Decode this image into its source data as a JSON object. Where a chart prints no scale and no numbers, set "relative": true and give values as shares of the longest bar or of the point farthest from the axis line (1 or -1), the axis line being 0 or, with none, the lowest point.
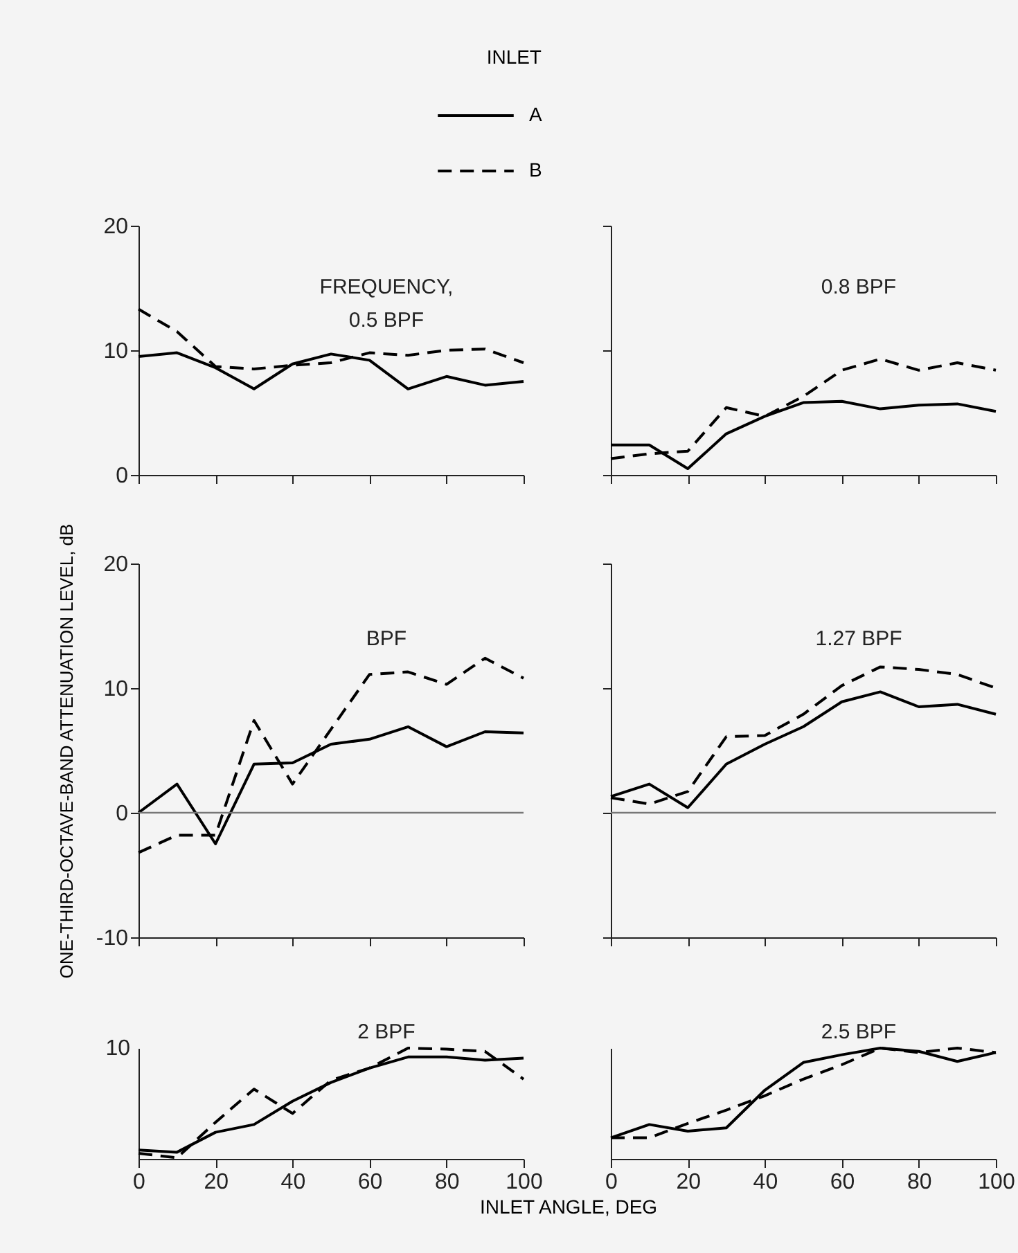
{
  "chart_data": [
    {
      "type": "line",
      "title": "0.5 BPF",
      "annotations": [
        "FREQUENCY,"
      ],
      "legend_title": "INLET",
      "legend": "top",
      "tick_labels": "y",
      "x": [
        0,
        10,
        20,
        30,
        40,
        50,
        60,
        70,
        80,
        90,
        100
      ],
      "xlim": [
        0,
        100
      ],
      "xticks": [
        0,
        20,
        40,
        60,
        80,
        100
      ],
      "ylim": [
        0,
        20
      ],
      "yticks": [
        0,
        10,
        20
      ],
      "series": [
        {
          "name": "A",
          "color": "#000000",
          "line_style": "solid",
          "values": [
            9.5,
            9.8,
            8.6,
            6.9,
            8.9,
            9.7,
            9.2,
            6.9,
            7.9,
            7.2,
            7.5
          ]
        },
        {
          "name": "B",
          "color": "#000000",
          "line_style": "dashed",
          "values": [
            13.3,
            11.5,
            8.7,
            8.5,
            8.8,
            9.0,
            9.8,
            9.6,
            10.0,
            10.1,
            9.0
          ]
        }
      ]
    },
    {
      "type": "line",
      "title": "0.8 BPF",
      "tick_labels": false,
      "x": [
        0,
        10,
        20,
        30,
        40,
        50,
        60,
        70,
        80,
        90,
        100
      ],
      "xlim": [
        0,
        100
      ],
      "xticks": [
        0,
        20,
        40,
        60,
        80,
        100
      ],
      "ylim": [
        0,
        20
      ],
      "yticks": [
        0,
        10,
        20
      ],
      "series": [
        {
          "color": "#000000",
          "line_style": "solid",
          "values": [
            2.4,
            2.4,
            0.5,
            3.3,
            4.7,
            5.8,
            5.9,
            5.3,
            5.6,
            5.7,
            5.1
          ]
        },
        {
          "color": "#000000",
          "line_style": "dashed",
          "values": [
            1.3,
            1.7,
            1.9,
            5.4,
            4.7,
            6.3,
            8.4,
            9.3,
            8.4,
            9.0,
            8.4
          ]
        }
      ]
    },
    {
      "type": "line",
      "title": "BPF",
      "ylabel": "ONE-THIRD-OCTAVE-BAND ATTENUATION LEVEL, dB",
      "tick_labels": "y",
      "x": [
        0,
        10,
        20,
        30,
        40,
        50,
        60,
        70,
        80,
        90,
        100
      ],
      "xlim": [
        0,
        100
      ],
      "xticks": [
        0,
        20,
        40,
        60,
        80,
        100
      ],
      "ylim": [
        -10,
        20
      ],
      "yticks": [
        -10,
        0,
        10,
        20
      ],
      "ref_lines": [
        {
          "axis": "y",
          "value": 0
        }
      ],
      "series": [
        {
          "color": "#000000",
          "line_style": "solid",
          "values": [
            0,
            2.3,
            -2.5,
            3.9,
            4.0,
            5.5,
            5.9,
            6.9,
            5.3,
            6.5,
            6.4
          ]
        },
        {
          "color": "#000000",
          "line_style": "dashed",
          "values": [
            -3.2,
            -1.8,
            -1.8,
            7.4,
            2.3,
            6.7,
            11.1,
            11.3,
            10.3,
            12.4,
            10.8
          ]
        }
      ]
    },
    {
      "type": "line",
      "title": "1.27 BPF",
      "tick_labels": false,
      "x": [
        0,
        10,
        20,
        30,
        40,
        50,
        60,
        70,
        80,
        90,
        100
      ],
      "xlim": [
        0,
        100
      ],
      "xticks": [
        0,
        20,
        40,
        60,
        80,
        100
      ],
      "ylim": [
        -10,
        20
      ],
      "yticks": [
        -10,
        0,
        10,
        20
      ],
      "ref_lines": [
        {
          "axis": "y",
          "value": 0
        }
      ],
      "series": [
        {
          "color": "#000000",
          "line_style": "solid",
          "values": [
            1.3,
            2.3,
            0.4,
            3.9,
            5.5,
            6.9,
            8.9,
            9.7,
            8.5,
            8.7,
            7.9
          ]
        },
        {
          "color": "#000000",
          "line_style": "dashed",
          "values": [
            1.2,
            0.7,
            1.7,
            6.1,
            6.2,
            7.9,
            10.2,
            11.7,
            11.5,
            11.1,
            10.0
          ]
        }
      ]
    },
    {
      "type": "line",
      "title": "2 BPF",
      "xlabel": "INLET ANGLE, DEG",
      "annotations": [
        "10"
      ],
      "relative": true,
      "x": [
        0,
        10,
        20,
        30,
        40,
        50,
        60,
        70,
        80,
        90,
        100
      ],
      "xlim": [
        0,
        100
      ],
      "xticks": [
        0,
        20,
        40,
        60,
        80,
        100
      ],
      "series": [
        {
          "color": "#000000",
          "line_style": "solid",
          "values": [
            0.08,
            0.06,
            0.24,
            0.31,
            0.52,
            0.69,
            0.82,
            0.92,
            0.92,
            0.89,
            0.91
          ]
        },
        {
          "color": "#000000",
          "line_style": "dashed",
          "values": [
            0.05,
            0.01,
            0.33,
            0.63,
            0.41,
            0.71,
            0.82,
            1,
            0.99,
            0.97,
            0.72
          ]
        }
      ]
    },
    {
      "type": "line",
      "title": "2.5 BPF",
      "relative": true,
      "x": [
        0,
        10,
        20,
        30,
        40,
        50,
        60,
        70,
        80,
        90,
        100
      ],
      "xlim": [
        0,
        100
      ],
      "xticks": [
        0,
        20,
        40,
        60,
        80,
        100
      ],
      "series": [
        {
          "color": "#000000",
          "line_style": "solid",
          "values": [
            0.19,
            0.31,
            0.25,
            0.28,
            0.62,
            0.87,
            0.94,
            1,
            0.97,
            0.88,
            0.96
          ]
        },
        {
          "color": "#000000",
          "line_style": "dashed",
          "values": [
            0.19,
            0.19,
            0.32,
            0.44,
            0.57,
            0.72,
            0.85,
            1,
            0.96,
            1,
            0.96
          ]
        }
      ]
    }
  ]
}
